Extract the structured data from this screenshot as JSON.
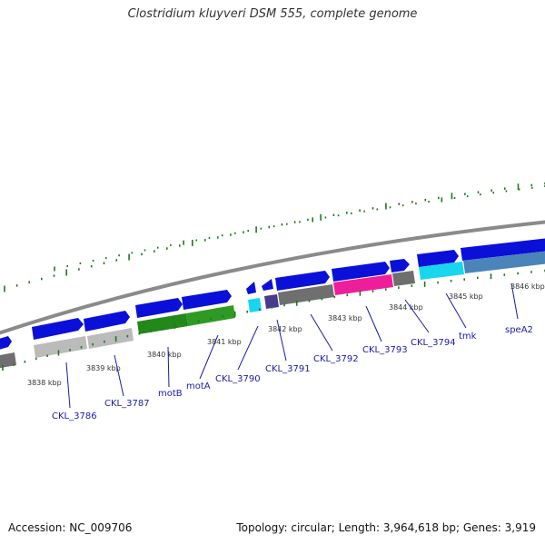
{
  "header": {
    "title": "Clostridium kluyveri DSM 555, complete genome"
  },
  "footer": {
    "accession": "Accession: NC_009706",
    "summary": "Topology: circular; Length: 3,964,618 bp; Genes: 3,919"
  },
  "colors": {
    "backbone": "#8a8a8a",
    "cds_forward": "#0a10d8",
    "grey_gene": "#bbbbbb",
    "dark_grey_gene": "#6f6f6f",
    "green_gene": "#22881a",
    "cyan_gene": "#18d6ee",
    "magenta_gene": "#ee1e9a",
    "purple_gene": "#4a3a8c",
    "steel_gene": "#4a84b8",
    "tick": "#1a7a1a",
    "label": "#1a1aa8"
  },
  "scale_labels": [
    "3838 kbp",
    "3839 kbp",
    "3840 kbp",
    "3841 kbp",
    "3842 kbp",
    "3843 kbp",
    "3844 kbp",
    "3845 kbp",
    "3846 kbp"
  ],
  "gene_labels": [
    "CKL_3786",
    "CKL_3787",
    "motB",
    "motA",
    "CKL_3790",
    "CKL_3791",
    "CKL_3792",
    "CKL_3793",
    "CKL_3794",
    "tmk",
    "speA2"
  ]
}
